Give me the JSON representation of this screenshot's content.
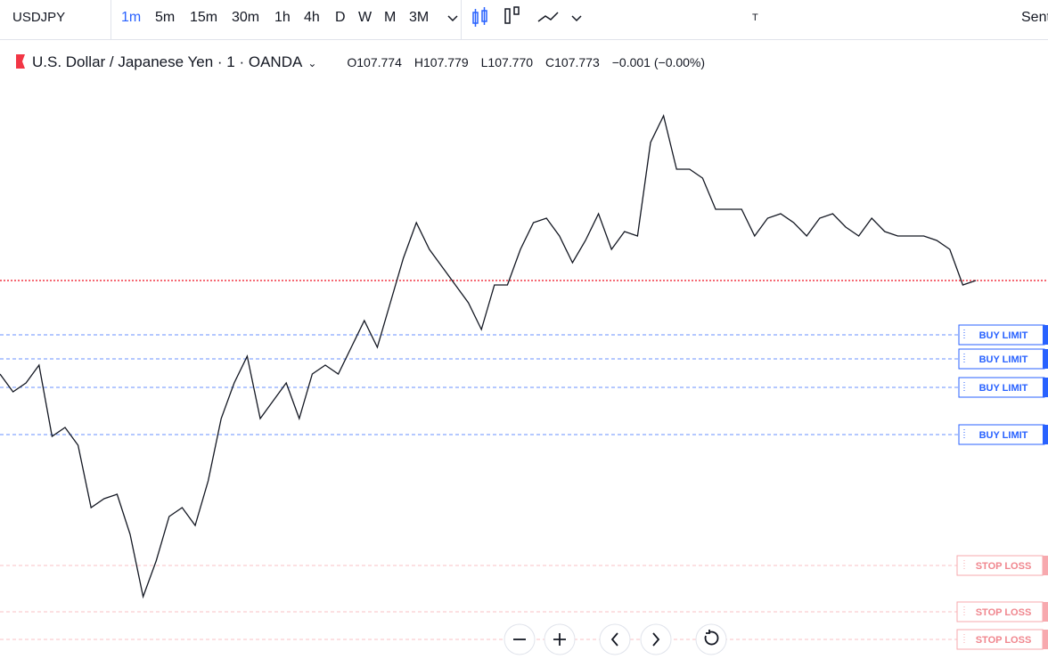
{
  "toolbar": {
    "symbol": "USDJPY",
    "intervals": [
      "1m",
      "5m",
      "15m",
      "30m",
      "1h",
      "4h",
      "D",
      "W",
      "M",
      "3M"
    ],
    "text_tool": "T",
    "sentiment": "Sent"
  },
  "legend": {
    "title": "U.S. Dollar / Japanese Yen · 1 · OANDA",
    "o_label": "O",
    "open": "107.774",
    "h_label": "H",
    "high": "107.779",
    "l_label": "L",
    "low": "107.770",
    "c_label": "C",
    "close": "107.773",
    "change": "−0.001 (−0.00%)"
  },
  "chart_data": {
    "type": "line",
    "color": "#131722",
    "ylim": [
      107.5605,
      107.8855
    ],
    "values": [
      107.7205,
      107.7105,
      107.7155,
      107.7255,
      107.6855,
      107.6905,
      107.6805,
      107.6455,
      107.6505,
      107.653,
      107.6305,
      107.5955,
      107.6155,
      107.6405,
      107.6455,
      107.6355,
      107.6605,
      107.6955,
      107.7155,
      107.7305,
      107.6955,
      107.7055,
      107.7155,
      107.6955,
      107.7205,
      107.7255,
      107.7205,
      107.7355,
      107.7505,
      107.7355,
      107.7605,
      107.7855,
      107.8055,
      107.7905,
      107.7805,
      107.7705,
      107.7605,
      107.7455,
      107.7705,
      107.7705,
      107.7905,
      107.8055,
      107.808,
      107.798,
      107.783,
      107.7955,
      107.8105,
      107.7905,
      107.8005,
      107.798,
      107.8505,
      107.8655,
      107.8355,
      107.8355,
      107.8305,
      107.813,
      107.813,
      107.813,
      107.798,
      107.808,
      107.8105,
      107.8055,
      107.798,
      107.808,
      107.8105,
      107.803,
      107.798,
      107.808,
      107.8005,
      107.798,
      107.798,
      107.798,
      107.7955,
      107.7905,
      107.7705,
      107.773
    ],
    "last_price": 107.773,
    "last_price_color": "#f23645",
    "orders": [
      {
        "label": "BUY LIMIT",
        "price": 107.7425,
        "color": "#2962ff"
      },
      {
        "label": "BUY LIMIT",
        "price": 107.729,
        "color": "#2962ff"
      },
      {
        "label": "BUY LIMIT",
        "price": 107.713,
        "color": "#2962ff"
      },
      {
        "label": "BUY LIMIT",
        "price": 107.6865,
        "color": "#2962ff"
      },
      {
        "label": "STOP LOSS",
        "price": 107.613,
        "color": "#f7a9ae"
      },
      {
        "label": "STOP LOSS",
        "price": 107.587,
        "color": "#f7a9ae"
      },
      {
        "label": "STOP LOSS",
        "price": 107.5715,
        "color": "#f7a9ae"
      }
    ]
  }
}
